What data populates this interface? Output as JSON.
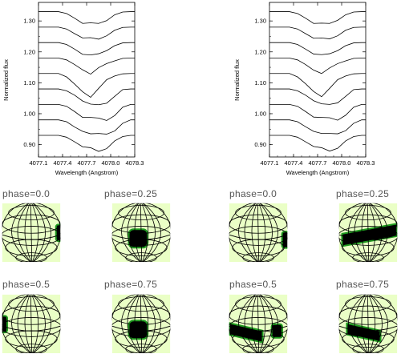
{
  "chart_data": [
    {
      "type": "line",
      "xlabel": "Wavelength (Angstrom)",
      "ylabel": "Normalized flux",
      "xlim": [
        4077.1,
        4078.3
      ],
      "ylim": [
        0.86,
        1.36
      ],
      "x_ticks": [
        "4077.1",
        "4077.4",
        "4077.7",
        "4078.0",
        "4078.3"
      ],
      "y_ticks": [
        "0.90",
        "1.00",
        "1.10",
        "1.20",
        "1.30"
      ],
      "x": [
        4077.35,
        4077.45,
        4077.55,
        4077.65,
        4077.75,
        4077.85,
        4077.95,
        4078.05,
        4078.15,
        4078.25
      ],
      "series": [
        {
          "offset": 1.33,
          "values": [
            1.33,
            1.324,
            1.309,
            1.292,
            1.294,
            1.292,
            1.301,
            1.32,
            1.329,
            1.33
          ]
        },
        {
          "offset": 1.28,
          "values": [
            1.28,
            1.274,
            1.259,
            1.245,
            1.246,
            1.241,
            1.252,
            1.27,
            1.279,
            1.28
          ]
        },
        {
          "offset": 1.23,
          "values": [
            1.23,
            1.224,
            1.209,
            1.192,
            1.19,
            1.194,
            1.204,
            1.22,
            1.229,
            1.23
          ]
        },
        {
          "offset": 1.18,
          "values": [
            1.18,
            1.174,
            1.159,
            1.142,
            1.128,
            1.149,
            1.162,
            1.171,
            1.179,
            1.18
          ]
        },
        {
          "offset": 1.13,
          "values": [
            1.13,
            1.119,
            1.096,
            1.071,
            1.053,
            1.082,
            1.11,
            1.122,
            1.129,
            1.13
          ]
        },
        {
          "offset": 1.08,
          "values": [
            1.08,
            1.074,
            1.06,
            1.041,
            1.031,
            1.029,
            1.034,
            1.056,
            1.078,
            1.08
          ]
        },
        {
          "offset": 1.03,
          "values": [
            1.03,
            1.024,
            1.007,
            0.988,
            0.988,
            0.986,
            0.978,
            0.994,
            1.021,
            1.03
          ]
        },
        {
          "offset": 0.98,
          "values": [
            0.98,
            0.974,
            0.957,
            0.943,
            0.935,
            0.936,
            0.934,
            0.944,
            0.969,
            0.98
          ]
        },
        {
          "offset": 0.93,
          "values": [
            0.93,
            0.924,
            0.909,
            0.893,
            0.89,
            0.878,
            0.887,
            0.912,
            0.926,
            0.93
          ]
        }
      ]
    },
    {
      "type": "line",
      "xlabel": "Wavelength (Angstrom)",
      "ylabel": "Normalized flux",
      "xlim": [
        4077.1,
        4078.3
      ],
      "ylim": [
        0.86,
        1.36
      ],
      "x_ticks": [
        "4077.1",
        "4077.4",
        "4077.7",
        "4078.0",
        "4078.3"
      ],
      "y_ticks": [
        "0.90",
        "1.00",
        "1.10",
        "1.20",
        "1.30"
      ],
      "x": [
        4077.35,
        4077.45,
        4077.55,
        4077.65,
        4077.75,
        4077.85,
        4077.95,
        4078.05,
        4078.15,
        4078.25
      ],
      "series": [
        {
          "offset": 1.33,
          "values": [
            1.33,
            1.324,
            1.309,
            1.292,
            1.293,
            1.292,
            1.302,
            1.32,
            1.329,
            1.33
          ]
        },
        {
          "offset": 1.28,
          "values": [
            1.28,
            1.274,
            1.259,
            1.244,
            1.245,
            1.242,
            1.252,
            1.27,
            1.279,
            1.28
          ]
        },
        {
          "offset": 1.23,
          "values": [
            1.23,
            1.224,
            1.209,
            1.193,
            1.191,
            1.194,
            1.204,
            1.22,
            1.229,
            1.23
          ]
        },
        {
          "offset": 1.18,
          "values": [
            1.18,
            1.174,
            1.159,
            1.141,
            1.13,
            1.148,
            1.162,
            1.171,
            1.179,
            1.18
          ]
        },
        {
          "offset": 1.13,
          "values": [
            1.13,
            1.119,
            1.097,
            1.072,
            1.055,
            1.082,
            1.11,
            1.122,
            1.129,
            1.13
          ]
        },
        {
          "offset": 1.08,
          "values": [
            1.08,
            1.074,
            1.06,
            1.042,
            1.032,
            1.03,
            1.035,
            1.056,
            1.078,
            1.08
          ]
        },
        {
          "offset": 1.03,
          "values": [
            1.03,
            1.024,
            1.007,
            0.989,
            0.988,
            0.987,
            0.979,
            0.995,
            1.021,
            1.03
          ]
        },
        {
          "offset": 0.98,
          "values": [
            0.98,
            0.974,
            0.958,
            0.943,
            0.936,
            0.936,
            0.935,
            0.945,
            0.969,
            0.98
          ]
        },
        {
          "offset": 0.93,
          "values": [
            0.93,
            0.924,
            0.909,
            0.894,
            0.89,
            0.879,
            0.888,
            0.912,
            0.926,
            0.93
          ]
        }
      ]
    }
  ],
  "maps": {
    "colors": {
      "sphere": "#eaffc6",
      "spot": "#000000",
      "spot_edge": "#1f9a1f",
      "grid": "#000000"
    },
    "left": [
      {
        "label": "phase=0.0",
        "spot": "edge-right"
      },
      {
        "label": "phase=0.25",
        "spot": "center-low"
      },
      {
        "label": "phase=0.5",
        "spot": "edge-left"
      },
      {
        "label": "phase=0.75",
        "spot": "center-low"
      }
    ],
    "right": [
      {
        "label": "phase=0.0",
        "spot": "band-edge-right"
      },
      {
        "label": "phase=0.25",
        "spot": "band-center"
      },
      {
        "label": "phase=0.5",
        "spot": "band-split"
      },
      {
        "label": "phase=0.75",
        "spot": "band-center-left"
      }
    ]
  }
}
